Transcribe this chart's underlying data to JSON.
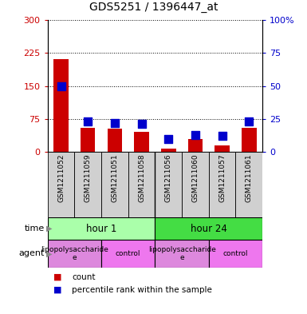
{
  "title": "GDS5251 / 1396447_at",
  "samples": [
    "GSM1211052",
    "GSM1211059",
    "GSM1211051",
    "GSM1211058",
    "GSM1211056",
    "GSM1211060",
    "GSM1211057",
    "GSM1211061"
  ],
  "counts": [
    210,
    55,
    52,
    45,
    8,
    30,
    15,
    55
  ],
  "percentiles": [
    50,
    23,
    22,
    21,
    10,
    13,
    12,
    23
  ],
  "ylim_left": [
    0,
    300
  ],
  "ylim_right": [
    0,
    100
  ],
  "yticks_left": [
    0,
    75,
    150,
    225,
    300
  ],
  "yticks_right": [
    0,
    25,
    50,
    75,
    100
  ],
  "ytick_labels_left": [
    "0",
    "75",
    "150",
    "225",
    "300"
  ],
  "ytick_labels_right": [
    "0",
    "25",
    "50",
    "75",
    "100%"
  ],
  "bar_color": "#cc0000",
  "dot_color": "#0000cc",
  "bg_color": "#ffffff",
  "sample_box_color": "#d0d0d0",
  "time_groups": [
    {
      "label": "hour 1",
      "start": 0,
      "end": 4,
      "color": "#aaffaa"
    },
    {
      "label": "hour 24",
      "start": 4,
      "end": 8,
      "color": "#44dd44"
    }
  ],
  "agent_groups": [
    {
      "label": "lipopolysaccharide\ne",
      "start": 0,
      "end": 2,
      "color": "#dd88dd"
    },
    {
      "label": "control",
      "start": 2,
      "end": 4,
      "color": "#ee77ee"
    },
    {
      "label": "lipopolysaccharide\ne",
      "start": 4,
      "end": 6,
      "color": "#dd88dd"
    },
    {
      "label": "control",
      "start": 6,
      "end": 8,
      "color": "#ee77ee"
    }
  ],
  "legend_items": [
    {
      "label": "count",
      "color": "#cc0000"
    },
    {
      "label": "percentile rank within the sample",
      "color": "#0000cc"
    }
  ],
  "bar_width": 0.55,
  "dot_size": 45
}
